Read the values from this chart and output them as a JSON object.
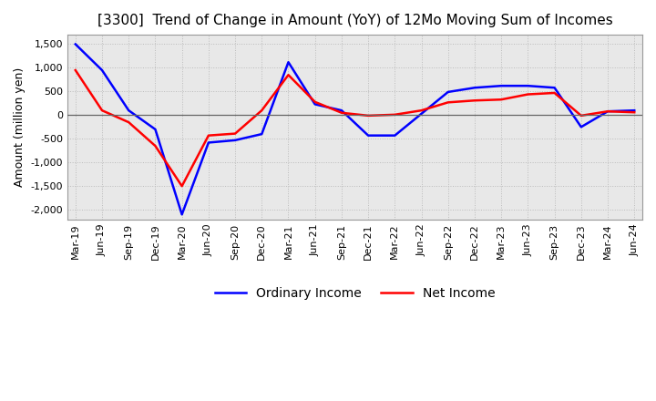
{
  "title": "[3300]  Trend of Change in Amount (YoY) of 12Mo Moving Sum of Incomes",
  "ylabel": "Amount (million yen)",
  "ylim": [
    -2200,
    1700
  ],
  "yticks": [
    -2000,
    -1500,
    -1000,
    -500,
    0,
    500,
    1000,
    1500
  ],
  "x_labels": [
    "Mar-19",
    "Jun-19",
    "Sep-19",
    "Dec-19",
    "Mar-20",
    "Jun-20",
    "Sep-20",
    "Dec-20",
    "Mar-21",
    "Jun-21",
    "Sep-21",
    "Dec-21",
    "Mar-22",
    "Jun-22",
    "Sep-22",
    "Dec-22",
    "Mar-23",
    "Jun-23",
    "Sep-23",
    "Dec-23",
    "Mar-24",
    "Jun-24"
  ],
  "ordinary_income": [
    1500,
    950,
    100,
    -300,
    -2100,
    -580,
    -530,
    -400,
    1120,
    230,
    100,
    -430,
    -430,
    30,
    490,
    580,
    620,
    620,
    580,
    -250,
    80,
    100
  ],
  "net_income": [
    950,
    100,
    -150,
    -650,
    -1500,
    -430,
    -390,
    100,
    850,
    280,
    50,
    -10,
    10,
    100,
    270,
    310,
    330,
    440,
    470,
    -10,
    80,
    60
  ],
  "ordinary_color": "#0000ff",
  "net_color": "#ff0000",
  "grid_color": "#bbbbbb",
  "bg_plot_color": "#e8e8e8",
  "background_color": "#ffffff",
  "title_fontsize": 11,
  "label_fontsize": 9,
  "tick_fontsize": 8
}
